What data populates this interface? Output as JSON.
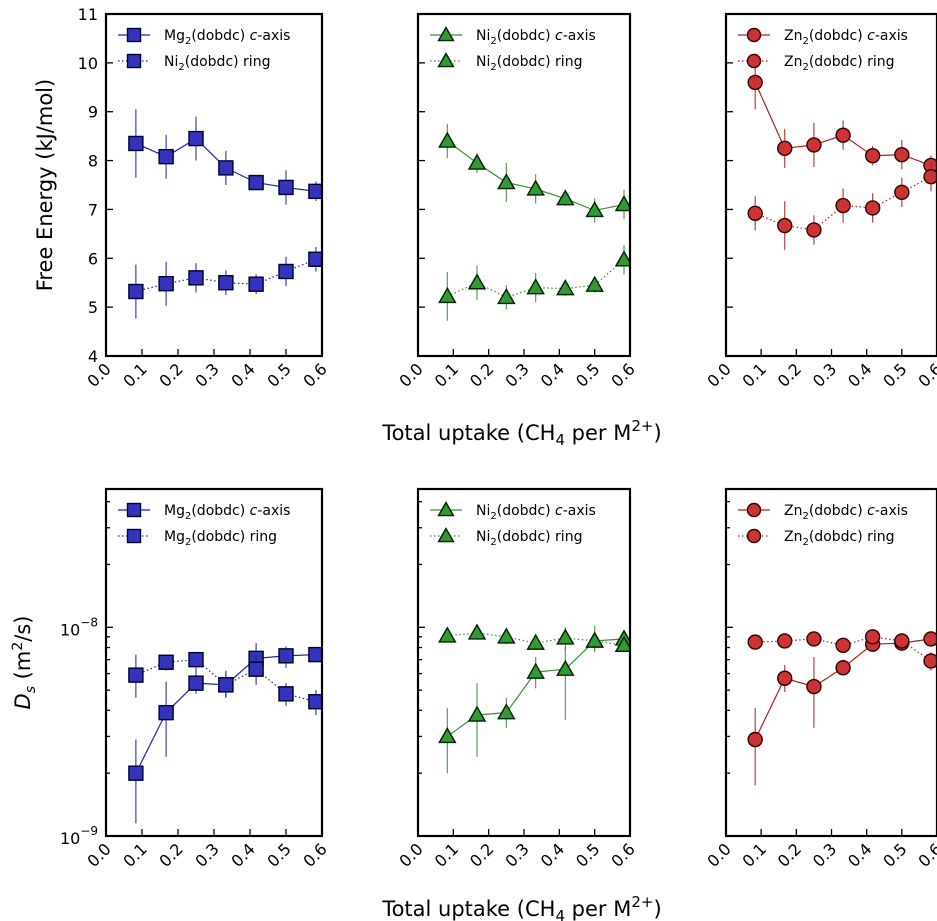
{
  "chart_data": {
    "type": "line",
    "xticks": [
      "0.0",
      "0.1",
      "0.2",
      "0.3",
      "0.4",
      "0.5",
      "0.6"
    ],
    "xtick_values": [
      0.0,
      0.1,
      0.2,
      0.3,
      0.4,
      0.5,
      0.6
    ],
    "xlim": [
      0.0,
      0.6
    ],
    "row_xlabel": {
      "pre": "Total uptake (CH",
      "sub": "4",
      "mid": " per M",
      "sup": "2+",
      "post": ")"
    },
    "rows": [
      {
        "id": "free-energy",
        "ylabel": "Free Energy (kJ/mol)",
        "scale": "linear",
        "ylim": [
          4,
          11
        ],
        "yticks": [
          "4",
          "5",
          "6",
          "7",
          "8",
          "9",
          "10",
          "11"
        ],
        "ytick_values": [
          4,
          5,
          6,
          7,
          8,
          9,
          10,
          11
        ],
        "panels": [
          {
            "metal": "Mg",
            "marker": "square",
            "face": "#3333bb",
            "edge": "#000033",
            "line": "#2222aa",
            "legend_labels": [
              {
                "pre": "Mg",
                "sub": "2",
                "mid": "(dobdc) ",
                "ital": "c",
                "post": "-axis"
              },
              {
                "pre": "Ni",
                "sub": "2",
                "mid": "(dobdc) ring",
                "ital": "",
                "post": ""
              }
            ],
            "series": [
              {
                "name": "Mg2(dobdc) c-axis",
                "style": "solid",
                "x": [
                  0.083,
                  0.167,
                  0.25,
                  0.333,
                  0.417,
                  0.5,
                  0.583
                ],
                "y": [
                  8.35,
                  8.08,
                  8.45,
                  7.85,
                  7.55,
                  7.45,
                  7.37
                ],
                "err": [
                  0.7,
                  0.45,
                  0.45,
                  0.35,
                  0.15,
                  0.35,
                  0.2
                ]
              },
              {
                "name": "Ni2(dobdc) ring",
                "style": "dotted",
                "x": [
                  0.083,
                  0.167,
                  0.25,
                  0.333,
                  0.417,
                  0.5,
                  0.583
                ],
                "y": [
                  5.32,
                  5.48,
                  5.6,
                  5.5,
                  5.47,
                  5.73,
                  5.98
                ],
                "err": [
                  0.55,
                  0.45,
                  0.3,
                  0.25,
                  0.2,
                  0.3,
                  0.25
                ]
              }
            ]
          },
          {
            "metal": "Ni",
            "marker": "triangle",
            "face": "#339933",
            "edge": "#002200",
            "line": "#3c8c3c",
            "legend_labels": [
              {
                "pre": "Ni",
                "sub": "2",
                "mid": "(dobdc) ",
                "ital": "c",
                "post": "-axis"
              },
              {
                "pre": "Ni",
                "sub": "2",
                "mid": "(dobdc) ring",
                "ital": "",
                "post": ""
              }
            ],
            "series": [
              {
                "name": "Ni2(dobdc) c-axis",
                "style": "solid",
                "x": [
                  0.083,
                  0.167,
                  0.25,
                  0.333,
                  0.417,
                  0.5,
                  0.583
                ],
                "y": [
                  8.4,
                  7.95,
                  7.55,
                  7.42,
                  7.22,
                  6.98,
                  7.1
                ],
                "err": [
                  0.35,
                  0.2,
                  0.4,
                  0.3,
                  0.15,
                  0.25,
                  0.3
                ]
              },
              {
                "name": "Ni2(dobdc) ring",
                "style": "dotted",
                "x": [
                  0.083,
                  0.167,
                  0.25,
                  0.333,
                  0.417,
                  0.5,
                  0.583
                ],
                "y": [
                  5.22,
                  5.5,
                  5.2,
                  5.4,
                  5.38,
                  5.45,
                  5.97
                ],
                "err": [
                  0.5,
                  0.35,
                  0.25,
                  0.3,
                  0.15,
                  0.15,
                  0.3
                ]
              }
            ]
          },
          {
            "metal": "Zn",
            "marker": "circle",
            "face": "#cc3333",
            "edge": "#330000",
            "line": "#aa2222",
            "legend_labels": [
              {
                "pre": "Zn",
                "sub": "2",
                "mid": "(dobdc) ",
                "ital": "c",
                "post": "-axis"
              },
              {
                "pre": "Zn",
                "sub": "2",
                "mid": "(dobdc) ring",
                "ital": "",
                "post": ""
              }
            ],
            "series": [
              {
                "name": "Zn2(dobdc) c-axis",
                "style": "solid",
                "x": [
                  0.083,
                  0.167,
                  0.25,
                  0.333,
                  0.417,
                  0.5,
                  0.583
                ],
                "y": [
                  9.6,
                  8.25,
                  8.32,
                  8.52,
                  8.1,
                  8.12,
                  7.9
                ],
                "err": [
                  0.55,
                  0.4,
                  0.45,
                  0.3,
                  0.2,
                  0.3,
                  0.2
                ]
              },
              {
                "name": "Zn2(dobdc) ring",
                "style": "dotted",
                "x": [
                  0.083,
                  0.167,
                  0.25,
                  0.333,
                  0.417,
                  0.5,
                  0.583
                ],
                "y": [
                  6.92,
                  6.67,
                  6.58,
                  7.08,
                  7.03,
                  7.35,
                  7.67
                ],
                "err": [
                  0.35,
                  0.5,
                  0.3,
                  0.35,
                  0.3,
                  0.3,
                  0.3
                ]
              }
            ]
          }
        ]
      },
      {
        "id": "diffusion",
        "ylabel_pre": "D",
        "ylabel_sub": "s",
        "ylabel_post": " (m",
        "ylabel_sup": "2",
        "ylabel_end": "/s)",
        "scale": "log",
        "ylim": [
          1e-09,
          4.6e-08
        ],
        "yticks_major": [
          {
            "value": 1e-09,
            "base": "10",
            "exp": "−9"
          },
          {
            "value": 1e-08,
            "base": "10",
            "exp": "−8"
          }
        ],
        "panels": [
          {
            "metal": "Mg",
            "marker": "square",
            "face": "#3333bb",
            "edge": "#000033",
            "line": "#2222aa",
            "legend_labels": [
              {
                "pre": "Mg",
                "sub": "2",
                "mid": "(dobdc) ",
                "ital": "c",
                "post": "-axis"
              },
              {
                "pre": "Mg",
                "sub": "2",
                "mid": "(dobdc) ring",
                "ital": "",
                "post": ""
              }
            ],
            "series": [
              {
                "name": "Mg2(dobdc) c-axis",
                "style": "solid",
                "x": [
                  0.083,
                  0.167,
                  0.25,
                  0.333,
                  0.417,
                  0.5,
                  0.583
                ],
                "y": [
                  2e-09,
                  3.9e-09,
                  5.4e-09,
                  5.3e-09,
                  7.1e-09,
                  7.3e-09,
                  7.4e-09
                ],
                "lo": [
                  1.15e-09,
                  2.4e-09,
                  4.8e-09,
                  4.6e-09,
                  5.8e-09,
                  6.4e-09,
                  6.8e-09
                ],
                "hi": [
                  2.9e-09,
                  5.5e-09,
                  6.4e-09,
                  6.2e-09,
                  8.4e-09,
                  8.1e-09,
                  8e-09
                ]
              },
              {
                "name": "Mg2(dobdc) ring",
                "style": "dotted",
                "x": [
                  0.083,
                  0.167,
                  0.25,
                  0.333,
                  0.417,
                  0.5,
                  0.583
                ],
                "y": [
                  5.9e-09,
                  6.8e-09,
                  7e-09,
                  5.3e-09,
                  6.3e-09,
                  4.8e-09,
                  4.4e-09
                ],
                "lo": [
                  4.6e-09,
                  6.2e-09,
                  6.4e-09,
                  4.6e-09,
                  5.3e-09,
                  4.2e-09,
                  3.8e-09
                ],
                "hi": [
                  7.4e-09,
                  7.4e-09,
                  7.6e-09,
                  6e-09,
                  7.3e-09,
                  5.4e-09,
                  5e-09
                ]
              }
            ]
          },
          {
            "metal": "Ni",
            "marker": "triangle",
            "face": "#339933",
            "edge": "#002200",
            "line": "#3c8c3c",
            "legend_labels": [
              {
                "pre": "Ni",
                "sub": "2",
                "mid": "(dobdc) ",
                "ital": "c",
                "post": "-axis"
              },
              {
                "pre": "Ni",
                "sub": "2",
                "mid": "(dobdc) ring",
                "ital": "",
                "post": ""
              }
            ],
            "series": [
              {
                "name": "Ni2(dobdc) c-axis",
                "style": "solid",
                "x": [
                  0.083,
                  0.167,
                  0.25,
                  0.333,
                  0.417,
                  0.5,
                  0.583
                ],
                "y": [
                  3e-09,
                  3.8e-09,
                  3.9e-09,
                  6.1e-09,
                  6.3e-09,
                  8.6e-09,
                  8.8e-09
                ],
                "lo": [
                  2e-09,
                  2.4e-09,
                  3.3e-09,
                  5.1e-09,
                  3.6e-09,
                  7.6e-09,
                  8e-09
                ],
                "hi": [
                  4.1e-09,
                  5.4e-09,
                  4.6e-09,
                  7.2e-09,
                  8e-09,
                  1.02e-08,
                  9.6e-09
                ]
              },
              {
                "name": "Ni2(dobdc) ring",
                "style": "dotted",
                "x": [
                  0.083,
                  0.167,
                  0.25,
                  0.333,
                  0.417,
                  0.5,
                  0.583
                ],
                "y": [
                  9.1e-09,
                  9.4e-09,
                  9e-09,
                  8.4e-09,
                  8.9e-09,
                  8.6e-09,
                  8.2e-09
                ],
                "lo": [
                  8.5e-09,
                  8.8e-09,
                  8.3e-09,
                  7.8e-09,
                  7.8e-09,
                  7.8e-09,
                  7.6e-09
                ],
                "hi": [
                  9.7e-09,
                  1e-08,
                  9.7e-09,
                  9e-09,
                  1e-08,
                  9.4e-09,
                  8.8e-09
                ]
              }
            ]
          },
          {
            "metal": "Zn",
            "marker": "circle",
            "face": "#cc3333",
            "edge": "#330000",
            "line": "#aa2222",
            "legend_labels": [
              {
                "pre": "Zn",
                "sub": "2",
                "mid": "(dobdc) ",
                "ital": "c",
                "post": "-axis"
              },
              {
                "pre": "Zn",
                "sub": "2",
                "mid": "(dobdc) ring",
                "ital": "",
                "post": ""
              }
            ],
            "series": [
              {
                "name": "Zn2(dobdc) c-axis",
                "style": "solid",
                "x": [
                  0.083,
                  0.167,
                  0.25,
                  0.333,
                  0.417,
                  0.5,
                  0.583
                ],
                "y": [
                  2.9e-09,
                  5.7e-09,
                  5.2e-09,
                  6.4e-09,
                  8.3e-09,
                  8.4e-09,
                  8.8e-09
                ],
                "lo": [
                  1.75e-09,
                  4.9e-09,
                  3.3e-09,
                  5.9e-09,
                  7.8e-09,
                  7.9e-09,
                  8.2e-09
                ],
                "hi": [
                  4.1e-09,
                  6.6e-09,
                  7.2e-09,
                  7e-09,
                  8.9e-09,
                  8.9e-09,
                  9.4e-09
                ]
              },
              {
                "name": "Zn2(dobdc) ring",
                "style": "dotted",
                "x": [
                  0.083,
                  0.167,
                  0.25,
                  0.333,
                  0.417,
                  0.5,
                  0.583
                ],
                "y": [
                  8.5e-09,
                  8.6e-09,
                  8.8e-09,
                  8.2e-09,
                  9e-09,
                  8.6e-09,
                  6.9e-09
                ],
                "lo": [
                  7.9e-09,
                  8e-09,
                  8.2e-09,
                  7.6e-09,
                  8.3e-09,
                  8.1e-09,
                  6.2e-09
                ],
                "hi": [
                  9.1e-09,
                  9.2e-09,
                  9.4e-09,
                  8.8e-09,
                  9.8e-09,
                  9.1e-09,
                  7.6e-09
                ]
              }
            ]
          }
        ]
      }
    ]
  }
}
